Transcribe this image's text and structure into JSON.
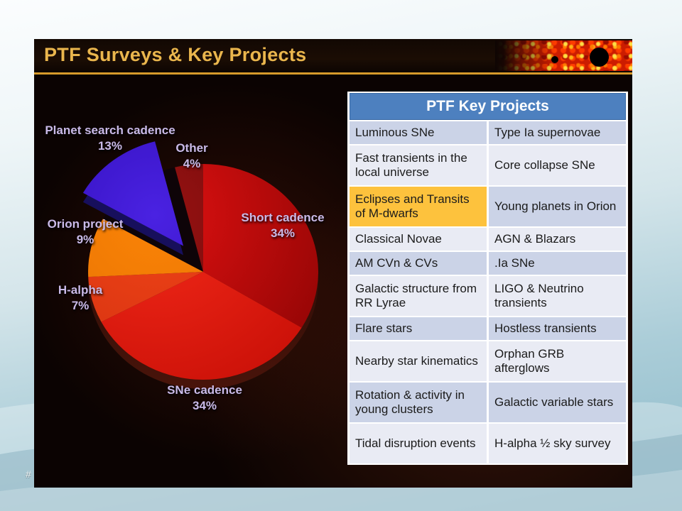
{
  "slide": {
    "title": "PTF Surveys & Key Projects",
    "slide_number": "#"
  },
  "colors": {
    "title_gold": "#eab64d",
    "gold_rule": "#d79a2b",
    "table_header_blue": "#4d80bf",
    "table_header_text": "#ffffff",
    "table_row_dark": "#cbd3e7",
    "table_row_light": "#e9ebf4",
    "highlight_orange": "#fdc23d",
    "table_text": "#1b1b1b",
    "pie_label_lavender": "#c9bae8"
  },
  "chart_data": {
    "type": "pie",
    "title": "",
    "unit": "%",
    "direction": "clockwise",
    "start_angle_deg": 0,
    "style": "3d-exploded",
    "slices": [
      {
        "label": "Short cadence",
        "value": 34,
        "color": "#e01111",
        "color_dark": "#8d0404",
        "exploded": false
      },
      {
        "label": "SNe cadence",
        "value": 34,
        "color": "#f52a1a",
        "color_dark": "#c60e06",
        "exploded": false
      },
      {
        "label": "H-alpha",
        "value": 7,
        "color": "#f04418",
        "color_dark": "#cf2e0e",
        "exploded": false
      },
      {
        "label": "Orion project",
        "value": 9,
        "color": "#fb8406",
        "color_dark": "#e06c03",
        "exploded": false
      },
      {
        "label": "Planet search cadence",
        "value": 13,
        "color": "#4a22e2",
        "color_dark": "#2706a8",
        "exploded": true
      },
      {
        "label": "Other",
        "value": 4,
        "color": "#991212",
        "color_dark": "#5c0707",
        "exploded": false
      }
    ]
  },
  "table": {
    "title": "PTF Key Projects",
    "rows": [
      {
        "left": "Luminous SNe",
        "right": "Type Ia supernovae",
        "left_highlight": false
      },
      {
        "left": "Fast transients in the local universe",
        "right": "Core collapse SNe",
        "left_highlight": false
      },
      {
        "left": "Eclipses and Transits of M-dwarfs",
        "right": "Young planets in Orion",
        "left_highlight": true
      },
      {
        "left": "Classical Novae",
        "right": "AGN & Blazars",
        "left_highlight": false
      },
      {
        "left": "AM CVn & CVs",
        "right": ".Ia SNe",
        "left_highlight": false
      },
      {
        "left": "Galactic structure from RR Lyrae",
        "right": "LIGO & Neutrino transients",
        "left_highlight": false
      },
      {
        "left": "Flare stars",
        "right": "Hostless transients",
        "left_highlight": false
      },
      {
        "left": "Nearby star kinematics",
        "right": "Orphan GRB afterglows",
        "left_highlight": false
      },
      {
        "left": "Rotation & activity in young clusters",
        "right": "Galactic variable stars",
        "left_highlight": false
      },
      {
        "left": "Tidal disruption events",
        "right": "H-alpha ½ sky survey",
        "left_highlight": false
      }
    ]
  }
}
